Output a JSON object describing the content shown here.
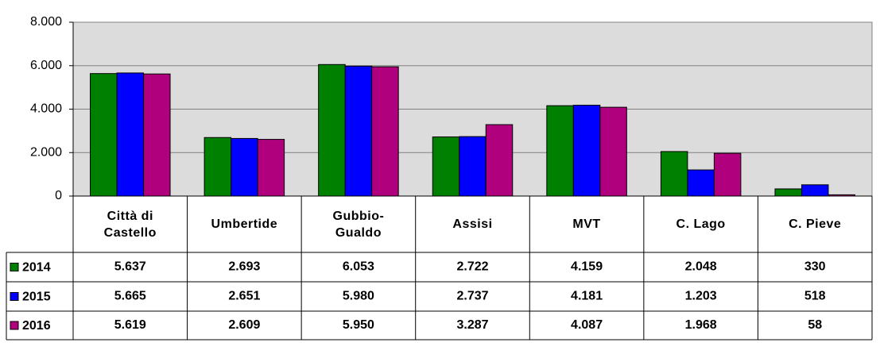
{
  "chart_data": {
    "type": "bar",
    "categories": [
      "Città di Castello",
      "Umbertide",
      "Gubbio-Gualdo",
      "Assisi",
      "MVT",
      "C. Lago",
      "C. Pieve"
    ],
    "series": [
      {
        "name": "2014",
        "color": "#008000",
        "values": [
          5637,
          2693,
          6053,
          2722,
          4159,
          2048,
          330
        ],
        "value_labels": [
          "5.637",
          "2.693",
          "6.053",
          "2.722",
          "4.159",
          "2.048",
          "330"
        ]
      },
      {
        "name": "2015",
        "color": "#0000ff",
        "values": [
          5665,
          2651,
          5980,
          2737,
          4181,
          1203,
          518
        ],
        "value_labels": [
          "5.665",
          "2.651",
          "5.980",
          "2.737",
          "4.181",
          "1.203",
          "518"
        ]
      },
      {
        "name": "2016",
        "color": "#b0007e",
        "values": [
          5619,
          2609,
          5950,
          3287,
          4087,
          1968,
          58
        ],
        "value_labels": [
          "5.619",
          "2.609",
          "5.950",
          "3.287",
          "4.087",
          "1.968",
          "58"
        ]
      }
    ],
    "ylim": [
      0,
      8000
    ],
    "yticks": [
      0,
      {
        "value": 2000,
        "label": "2.000"
      },
      {
        "value": 4000,
        "label": "4.000"
      },
      {
        "value": 6000,
        "label": "6.000"
      },
      {
        "value": 8000,
        "label": "8.000"
      }
    ],
    "grid": true,
    "plot_background": "#dcdcdc"
  }
}
